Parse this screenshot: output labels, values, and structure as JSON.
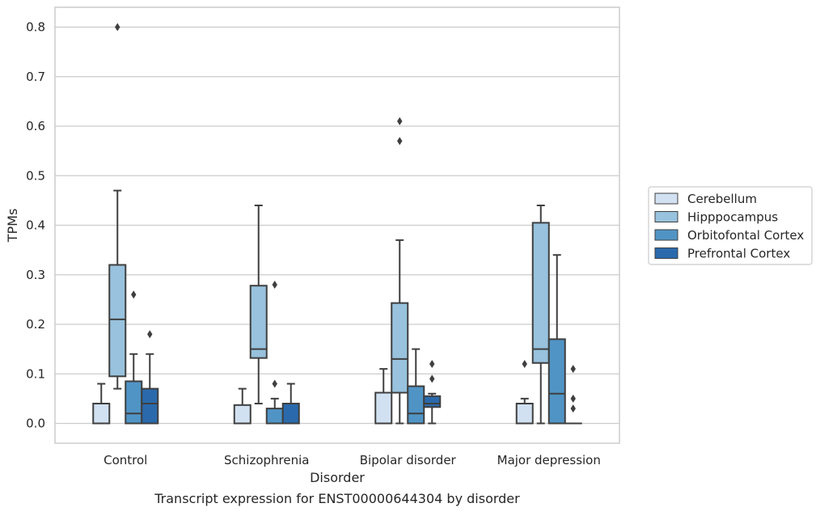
{
  "chart_data": {
    "type": "box",
    "caption": "Transcript expression for ENST00000644304 by disorder",
    "xlabel": "Disorder",
    "ylabel": "TPMs",
    "ylim": [
      -0.04,
      0.84
    ],
    "yticks": [
      "0.0",
      "0.1",
      "0.2",
      "0.3",
      "0.4",
      "0.5",
      "0.6",
      "0.7",
      "0.8"
    ],
    "grid": true,
    "legend_position": "right",
    "categories": [
      "Control",
      "Schizophrenia",
      "Bipolar disorder",
      "Major depression"
    ],
    "series": [
      {
        "name": "Cerebellum",
        "color": "#d1e1f1",
        "boxes": [
          {
            "whislo": 0.0,
            "q1": 0.0,
            "med": 0.0,
            "q3": 0.04,
            "whishi": 0.08,
            "fliers": []
          },
          {
            "whislo": 0.0,
            "q1": 0.0,
            "med": 0.0,
            "q3": 0.037,
            "whishi": 0.07,
            "fliers": []
          },
          {
            "whislo": 0.0,
            "q1": 0.0,
            "med": 0.0,
            "q3": 0.062,
            "whishi": 0.11,
            "fliers": []
          },
          {
            "whislo": 0.0,
            "q1": 0.0,
            "med": 0.0,
            "q3": 0.04,
            "whishi": 0.05,
            "fliers": [
              0.12
            ]
          }
        ]
      },
      {
        "name": "Hipppocampus",
        "color": "#98c2dd",
        "boxes": [
          {
            "whislo": 0.07,
            "q1": 0.095,
            "med": 0.21,
            "q3": 0.32,
            "whishi": 0.47,
            "fliers": [
              0.8
            ]
          },
          {
            "whislo": 0.04,
            "q1": 0.132,
            "med": 0.15,
            "q3": 0.278,
            "whishi": 0.44,
            "fliers": []
          },
          {
            "whislo": 0.0,
            "q1": 0.062,
            "med": 0.13,
            "q3": 0.243,
            "whishi": 0.37,
            "fliers": [
              0.57,
              0.61
            ]
          },
          {
            "whislo": 0.0,
            "q1": 0.122,
            "med": 0.15,
            "q3": 0.405,
            "whishi": 0.44,
            "fliers": []
          }
        ]
      },
      {
        "name": "Orbitofontal Cortex",
        "color": "#5094c5",
        "boxes": [
          {
            "whislo": 0.0,
            "q1": 0.0,
            "med": 0.02,
            "q3": 0.085,
            "whishi": 0.14,
            "fliers": [
              0.26
            ]
          },
          {
            "whislo": 0.0,
            "q1": 0.0,
            "med": 0.0,
            "q3": 0.03,
            "whishi": 0.05,
            "fliers": [
              0.08,
              0.28
            ]
          },
          {
            "whislo": 0.0,
            "q1": 0.0,
            "med": 0.02,
            "q3": 0.075,
            "whishi": 0.15,
            "fliers": []
          },
          {
            "whislo": 0.0,
            "q1": 0.0,
            "med": 0.06,
            "q3": 0.17,
            "whishi": 0.34,
            "fliers": []
          }
        ]
      },
      {
        "name": "Prefrontal Cortex",
        "color": "#2a6aac",
        "boxes": [
          {
            "whislo": 0.0,
            "q1": 0.0,
            "med": 0.04,
            "q3": 0.07,
            "whishi": 0.14,
            "fliers": [
              0.18
            ]
          },
          {
            "whislo": 0.0,
            "q1": 0.0,
            "med": 0.0,
            "q3": 0.04,
            "whishi": 0.08,
            "fliers": []
          },
          {
            "whislo": 0.0,
            "q1": 0.033,
            "med": 0.04,
            "q3": 0.055,
            "whishi": 0.06,
            "fliers": [
              0.09,
              0.12
            ]
          },
          {
            "whislo": 0.0,
            "q1": 0.0,
            "med": 0.0,
            "q3": 0.0,
            "whishi": 0.0,
            "fliers": [
              0.03,
              0.05,
              0.11
            ]
          }
        ]
      }
    ]
  }
}
